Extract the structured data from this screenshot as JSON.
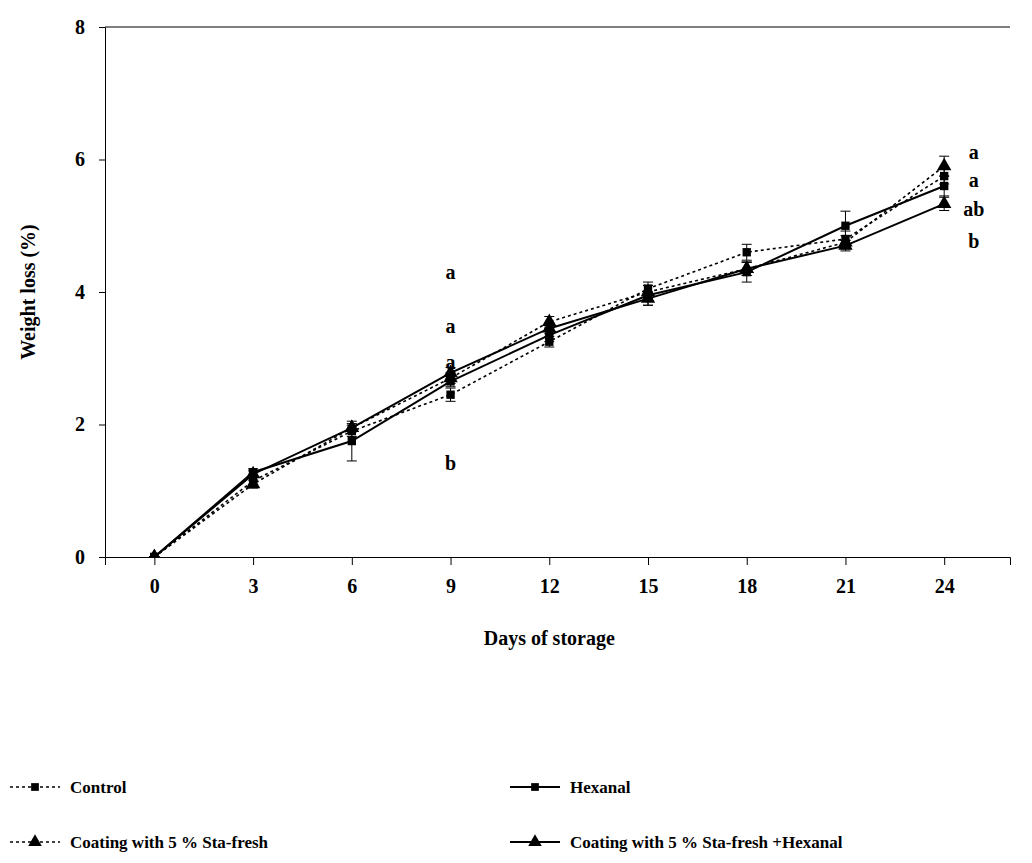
{
  "chart_data": {
    "type": "line",
    "x_label": "Days of storage",
    "y_label": "Weight loss (%)",
    "x": [
      0,
      3,
      6,
      9,
      12,
      15,
      18,
      21,
      24
    ],
    "xlim": [
      -1.5,
      26
    ],
    "xticks": [
      0,
      3,
      6,
      9,
      12,
      15,
      18,
      21,
      24
    ],
    "ylim": [
      0,
      8
    ],
    "yticks": [
      0,
      2,
      4,
      6,
      8
    ],
    "legend": "bottom",
    "series": [
      {
        "name": "Control",
        "color": "#000000",
        "line_style": "dotted",
        "marker": "square",
        "values": [
          0,
          1.15,
          1.9,
          2.45,
          3.25,
          4.05,
          4.6,
          4.8,
          5.75
        ],
        "errors": [
          0,
          0.06,
          0.08,
          0.1,
          0.08,
          0.1,
          0.12,
          0.12,
          0.12
        ]
      },
      {
        "name": "Hexanal",
        "color": "#000000",
        "line_style": "solid",
        "marker": "square",
        "values": [
          0,
          1.28,
          1.75,
          2.65,
          3.35,
          3.95,
          4.3,
          5.0,
          5.6
        ],
        "errors": [
          0,
          0.05,
          0.3,
          0.08,
          0.1,
          0.15,
          0.15,
          0.22,
          0.15
        ]
      },
      {
        "name": "Coating with 5 % Sta-fresh",
        "color": "#000000",
        "line_style": "dotted",
        "marker": "triangle",
        "values": [
          0,
          1.1,
          1.95,
          2.7,
          3.55,
          4.0,
          4.35,
          4.75,
          5.9
        ],
        "errors": [
          0,
          0.06,
          0.06,
          0.08,
          0.08,
          0.1,
          0.1,
          0.1,
          0.15
        ]
      },
      {
        "name": "Coating with 5 % Sta-fresh +Hexanal",
        "color": "#000000",
        "line_style": "solid",
        "marker": "triangle",
        "values": [
          0,
          1.25,
          1.95,
          2.78,
          3.45,
          3.9,
          4.35,
          4.7,
          5.33
        ],
        "errors": [
          0,
          0.05,
          0.06,
          0.08,
          0.08,
          0.1,
          0.1,
          0.08,
          0.1
        ]
      }
    ],
    "annotations": [
      {
        "x": 9,
        "y": 4.3,
        "text": "a"
      },
      {
        "x": 9,
        "y": 3.49,
        "text": "a"
      },
      {
        "x": 9,
        "y": 2.94,
        "text": "a"
      },
      {
        "x": 9,
        "y": 1.42,
        "text": "b"
      },
      {
        "x": 24.9,
        "y": 6.11,
        "text": "a"
      },
      {
        "x": 24.9,
        "y": 5.69,
        "text": "a"
      },
      {
        "x": 24.9,
        "y": 5.25,
        "text": "ab"
      },
      {
        "x": 24.9,
        "y": 4.77,
        "text": "b"
      }
    ]
  }
}
